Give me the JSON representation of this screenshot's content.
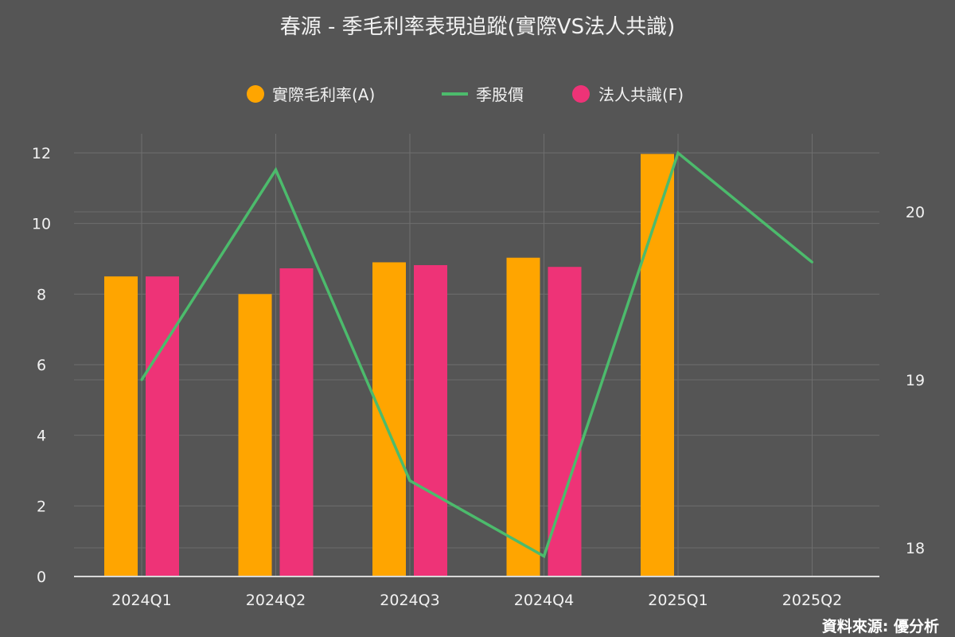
{
  "chart_data": {
    "type": "bar",
    "title": "春源 - 季毛利率表現追蹤(實際VS法人共識)",
    "categories": [
      "2024Q1",
      "2024Q2",
      "2024Q3",
      "2024Q4",
      "2025Q1",
      "2025Q2"
    ],
    "series": [
      {
        "name": "實際毛利率(A)",
        "type": "bar",
        "axis": "left",
        "color": "#FFA500",
        "values": [
          8.5,
          8.0,
          8.9,
          9.03,
          11.97,
          null
        ]
      },
      {
        "name": "季股價",
        "type": "line",
        "axis": "right",
        "color": "#4CBB6C",
        "values": [
          19.0,
          20.25,
          18.4,
          17.95,
          20.35,
          19.7
        ]
      },
      {
        "name": "法人共識(F)",
        "type": "bar",
        "axis": "left",
        "color": "#EE3377",
        "values": [
          8.5,
          8.73,
          8.82,
          8.77,
          null,
          null
        ]
      }
    ],
    "y_left": {
      "min": 0,
      "max": 12,
      "ticks": [
        "0",
        "2",
        "4",
        "6",
        "8",
        "10",
        "12"
      ]
    },
    "y_right": {
      "min": 17.8,
      "max": 20.4,
      "ticks": [
        "18",
        "19",
        "20"
      ]
    },
    "legend_position": "top-center",
    "grid": true,
    "source": "資料來源: 優分析"
  }
}
